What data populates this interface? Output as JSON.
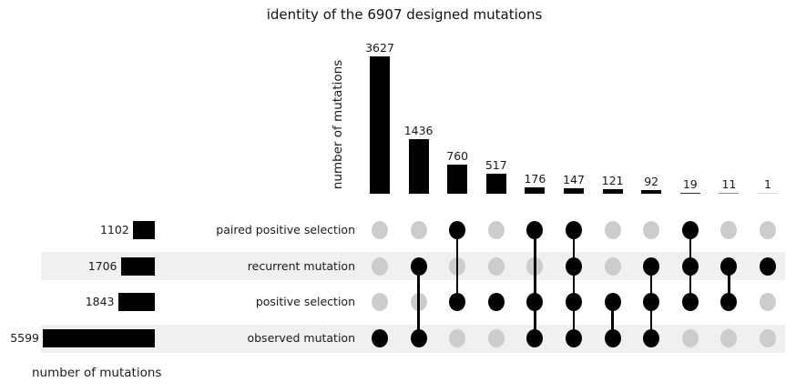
{
  "colors": {
    "bar": "#000000",
    "dot_active": "#000000",
    "dot_inactive": "#cccccc",
    "row_stripe": "#f0f0f0",
    "text": "#1a1a1a"
  },
  "chart_data": {
    "type": "bar",
    "variant": "upset",
    "title": "identity of the 6907 designed mutations",
    "intersection_axis_label": "number of mutations",
    "set_axis_label": "number of mutations",
    "legend_position": "none",
    "grid": false,
    "set_names": [
      "paired positive selection",
      "recurrent mutation",
      "positive selection",
      "observed mutation"
    ],
    "set_totals": [
      1102,
      1706,
      1843,
      5599
    ],
    "intersection_values": [
      3627,
      1436,
      760,
      517,
      176,
      147,
      121,
      92,
      19,
      11,
      1
    ],
    "intersection_membership": [
      [
        0,
        0,
        0,
        1
      ],
      [
        0,
        1,
        0,
        1
      ],
      [
        1,
        0,
        1,
        0
      ],
      [
        0,
        0,
        1,
        0
      ],
      [
        1,
        0,
        1,
        1
      ],
      [
        1,
        1,
        1,
        1
      ],
      [
        0,
        0,
        1,
        1
      ],
      [
        0,
        1,
        1,
        1
      ],
      [
        1,
        1,
        1,
        0
      ],
      [
        0,
        1,
        1,
        0
      ],
      [
        0,
        1,
        0,
        0
      ]
    ]
  }
}
